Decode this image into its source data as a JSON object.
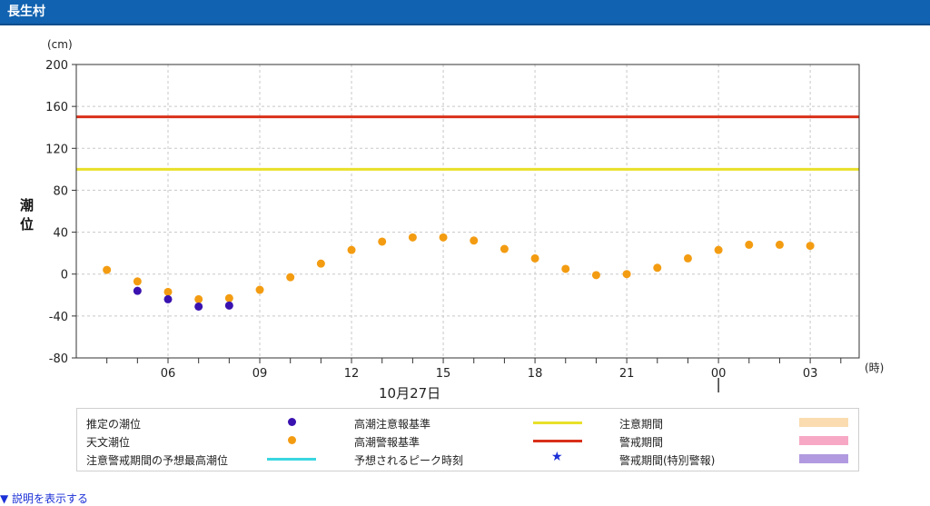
{
  "page": {
    "title": "長生村"
  },
  "chart_data": {
    "type": "scatter",
    "y_unit": "(cm)",
    "ylabel": "潮位",
    "x_unit": "(時)",
    "date_label": "10月27日",
    "ylim": [
      -80,
      200
    ],
    "yticks": [
      -80,
      -40,
      0,
      40,
      80,
      120,
      160,
      200
    ],
    "xticks": [
      {
        "hour": 6,
        "label": "06"
      },
      {
        "hour": 9,
        "label": "09"
      },
      {
        "hour": 12,
        "label": "12"
      },
      {
        "hour": 15,
        "label": "15"
      },
      {
        "hour": 18,
        "label": "18"
      },
      {
        "hour": 21,
        "label": "21"
      },
      {
        "hour": 24,
        "label": "00"
      },
      {
        "hour": 27,
        "label": "03"
      }
    ],
    "xlim": [
      3,
      28.6
    ],
    "grid": true,
    "reference_lines": [
      {
        "name": "高潮注意報基準",
        "value": 100,
        "color": "#e8e02a"
      },
      {
        "name": "高潮警報基準",
        "value": 150,
        "color": "#d9301a"
      }
    ],
    "series": [
      {
        "name": "天文潮位",
        "color": "#f39c12",
        "hours": [
          4,
          5,
          6,
          7,
          8,
          9,
          10,
          11,
          12,
          13,
          14,
          15,
          16,
          17,
          18,
          19,
          20,
          21,
          22,
          23,
          24,
          25,
          26,
          27
        ],
        "values": [
          4,
          -7,
          -17,
          -24,
          -23,
          -15,
          -3,
          10,
          23,
          31,
          35,
          35,
          32,
          24,
          15,
          5,
          -1,
          0,
          6,
          15,
          23,
          28,
          28,
          27
        ]
      },
      {
        "name": "推定の潮位",
        "color": "#3a12b0",
        "hours": [
          5,
          6,
          7,
          8
        ],
        "values": [
          -16,
          -24,
          -31,
          -30
        ]
      }
    ]
  },
  "legend": {
    "estimated_tide": "推定の潮位",
    "astronomical_tide": "天文潮位",
    "predicted_max": "注意警戒期間の予想最高潮位",
    "advisory_standard": "高潮注意報基準",
    "warning_standard": "高潮警報基準",
    "peak_time": "予想されるピーク時刻",
    "advisory_period": "注意期間",
    "warning_period": "警戒期間",
    "special_warning_period": "警戒期間(特別警報)",
    "colors": {
      "estimated": "#3a12b0",
      "astronomical": "#f39c12",
      "predicted_max": "#39d6e0",
      "advisory_line": "#e8e02a",
      "warning_line": "#d9301a",
      "peak_star": "#1a2fd6",
      "advisory_period": "#fadcb0",
      "warning_period": "#f7a8c4",
      "special_warning_period": "#b29ae0"
    }
  },
  "footer": {
    "explain_link": "▼ 説明を表示する"
  }
}
